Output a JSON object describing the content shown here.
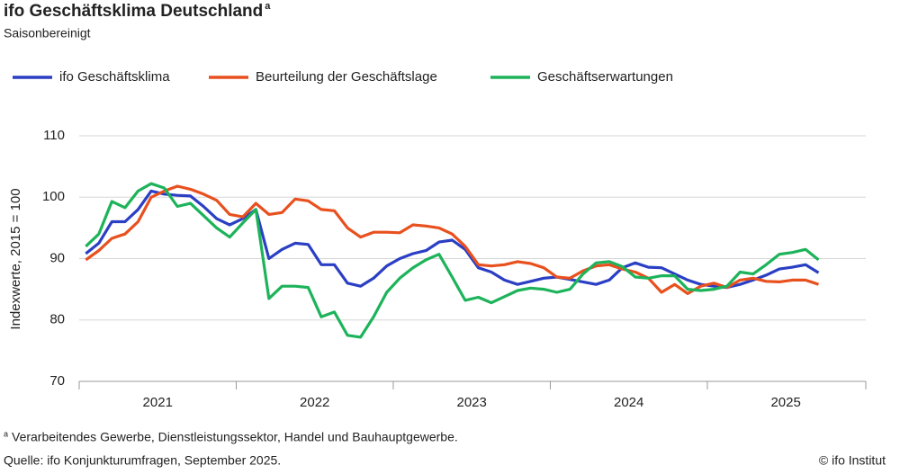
{
  "chart_data": {
    "type": "line",
    "title": "ifo Geschäftsklima Deutschland",
    "title_marker": "a",
    "subtitle": "Saisonbereinigt",
    "y_label": "Indexwerte, 2015 = 100",
    "footnote_marker": "a",
    "footnote": "Verarbeitendes Gewerbe, Dienstleistungssektor, Handel und Bauhauptgewerbe.",
    "source": "Quelle: ifo Konjunkturumfragen, September 2025.",
    "credit": "© ifo Institut",
    "legend": "top-left",
    "grid": true,
    "ylim": [
      70,
      110
    ],
    "yticks": [
      70,
      80,
      90,
      100,
      110
    ],
    "categories": [
      "2021",
      null,
      null,
      null,
      null,
      null,
      null,
      null,
      null,
      null,
      null,
      null,
      "2022",
      null,
      null,
      null,
      null,
      null,
      null,
      null,
      null,
      null,
      null,
      null,
      "2023",
      null,
      null,
      null,
      null,
      null,
      null,
      null,
      null,
      null,
      null,
      null,
      "2024",
      null,
      null,
      null,
      null,
      null,
      null,
      null,
      null,
      null,
      null,
      null,
      "2025",
      null,
      null,
      null,
      null,
      null,
      null,
      null,
      null
    ],
    "series": [
      {
        "name": "ifo Geschäftsklima",
        "color": "#2b3fc4",
        "values": [
          90.8,
          92.5,
          96.0,
          96.0,
          98.0,
          101.0,
          100.5,
          100.3,
          100.2,
          98.5,
          96.5,
          95.5,
          96.5,
          98.0,
          90.0,
          91.5,
          92.5,
          92.3,
          89.0,
          89.0,
          86.0,
          85.5,
          86.8,
          88.8,
          90.0,
          90.8,
          91.3,
          92.7,
          93.0,
          91.5,
          88.5,
          87.8,
          86.5,
          85.8,
          86.3,
          86.8,
          87.0,
          86.6,
          86.2,
          85.8,
          86.5,
          88.5,
          89.3,
          88.6,
          88.5,
          87.5,
          86.5,
          85.8,
          85.5,
          85.3,
          85.8,
          86.5,
          87.3,
          88.3,
          88.6,
          89.0,
          87.7
        ]
      },
      {
        "name": "Beurteilung der Geschäftslage",
        "color": "#e8501e",
        "values": [
          89.8,
          91.3,
          93.3,
          94.0,
          96.0,
          100.0,
          101.0,
          101.8,
          101.3,
          100.5,
          99.5,
          97.2,
          96.8,
          99.0,
          97.2,
          97.5,
          99.7,
          99.4,
          98.0,
          97.8,
          95.0,
          93.5,
          94.3,
          94.3,
          94.2,
          95.5,
          95.3,
          95.0,
          94.0,
          92.0,
          89.0,
          88.8,
          89.0,
          89.5,
          89.2,
          88.5,
          87.0,
          86.8,
          88.0,
          88.8,
          89.0,
          88.3,
          87.8,
          86.8,
          84.5,
          85.8,
          84.3,
          85.5,
          86.0,
          85.3,
          86.5,
          86.8,
          86.3,
          86.2,
          86.5,
          86.5,
          85.8
        ]
      },
      {
        "name": "Geschäftserwartungen",
        "color": "#1db35a",
        "values": [
          92.0,
          94.0,
          99.3,
          98.3,
          101.0,
          102.2,
          101.5,
          98.5,
          99.0,
          97.0,
          95.0,
          93.5,
          95.8,
          98.0,
          83.5,
          85.5,
          85.5,
          85.3,
          80.5,
          81.3,
          77.5,
          77.2,
          80.5,
          84.5,
          86.8,
          88.5,
          89.8,
          90.7,
          87.0,
          83.2,
          83.7,
          82.8,
          83.8,
          84.8,
          85.2,
          85.0,
          84.5,
          85.0,
          87.5,
          89.3,
          89.5,
          88.7,
          87.0,
          86.8,
          87.2,
          87.2,
          85.0,
          84.8,
          85.0,
          85.5,
          87.8,
          87.5,
          89.0,
          90.7,
          91.0,
          91.5,
          89.8
        ]
      }
    ]
  }
}
